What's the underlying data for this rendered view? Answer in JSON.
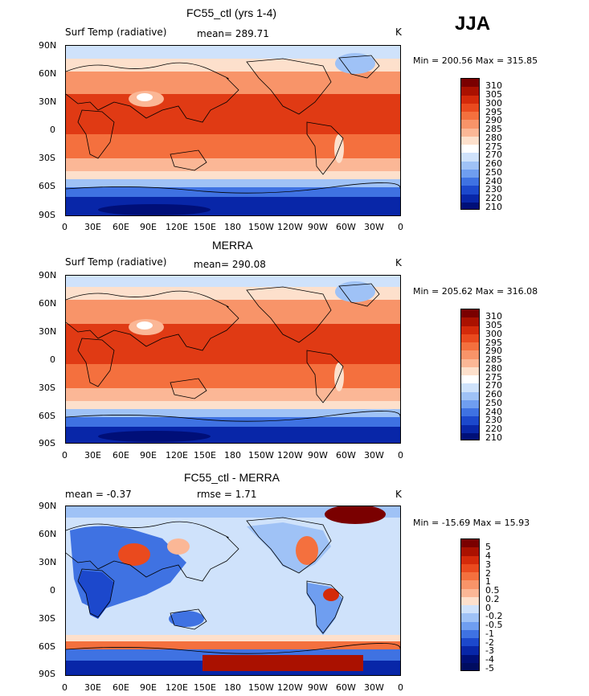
{
  "season": "JJA",
  "panels": [
    {
      "title": "FC55_ctl (yrs 1-4)",
      "left_label": "Surf Temp (radiative)",
      "center_label": "mean= 289.71",
      "units": "K",
      "minmax": "Min = 200.56 Max = 315.85"
    },
    {
      "title": "MERRA",
      "left_label": "Surf Temp (radiative)",
      "center_label": "mean= 290.08",
      "units": "K",
      "minmax": "Min = 205.62 Max = 316.08"
    },
    {
      "title": "FC55_ctl - MERRA",
      "left_label": "mean =   -0.37",
      "center_label": "rmse =    1.71",
      "units": "K",
      "minmax": "Min = -15.69 Max =  15.93"
    }
  ],
  "lat_ticks": [
    "90N",
    "60N",
    "30N",
    "0",
    "30S",
    "60S",
    "90S"
  ],
  "lon_ticks": [
    "0",
    "30E",
    "60E",
    "90E",
    "120E",
    "150E",
    "180",
    "150W",
    "120W",
    "90W",
    "60W",
    "30W",
    "0"
  ],
  "temp_colorbar": {
    "labels": [
      "310",
      "305",
      "300",
      "295",
      "290",
      "285",
      "280",
      "275",
      "270",
      "260",
      "250",
      "240",
      "230",
      "220",
      "210"
    ],
    "colors": [
      "#7a0000",
      "#aa1100",
      "#d42a0a",
      "#ea4a1e",
      "#f4703e",
      "#f89469",
      "#fbb796",
      "#fde0cc",
      "#ffffff",
      "#cfe2fb",
      "#9fc2f6",
      "#6f9ef0",
      "#3f72e2",
      "#1c48cc",
      "#0826a8",
      "#000f78"
    ]
  },
  "diff_colorbar": {
    "labels": [
      "5",
      "4",
      "3",
      "2",
      "1",
      "0.5",
      "0.2",
      "0",
      "-0.2",
      "-0.5",
      "-1",
      "-2",
      "-3",
      "-4",
      "-5"
    ],
    "colors": [
      "#7a0000",
      "#aa1100",
      "#d42a0a",
      "#ea4a1e",
      "#f4703e",
      "#f89469",
      "#fbb796",
      "#fde0cc",
      "#cfe2fb",
      "#9fc2f6",
      "#6f9ef0",
      "#3f72e2",
      "#1c48cc",
      "#0826a8",
      "#000f78",
      "#000c60"
    ]
  }
}
